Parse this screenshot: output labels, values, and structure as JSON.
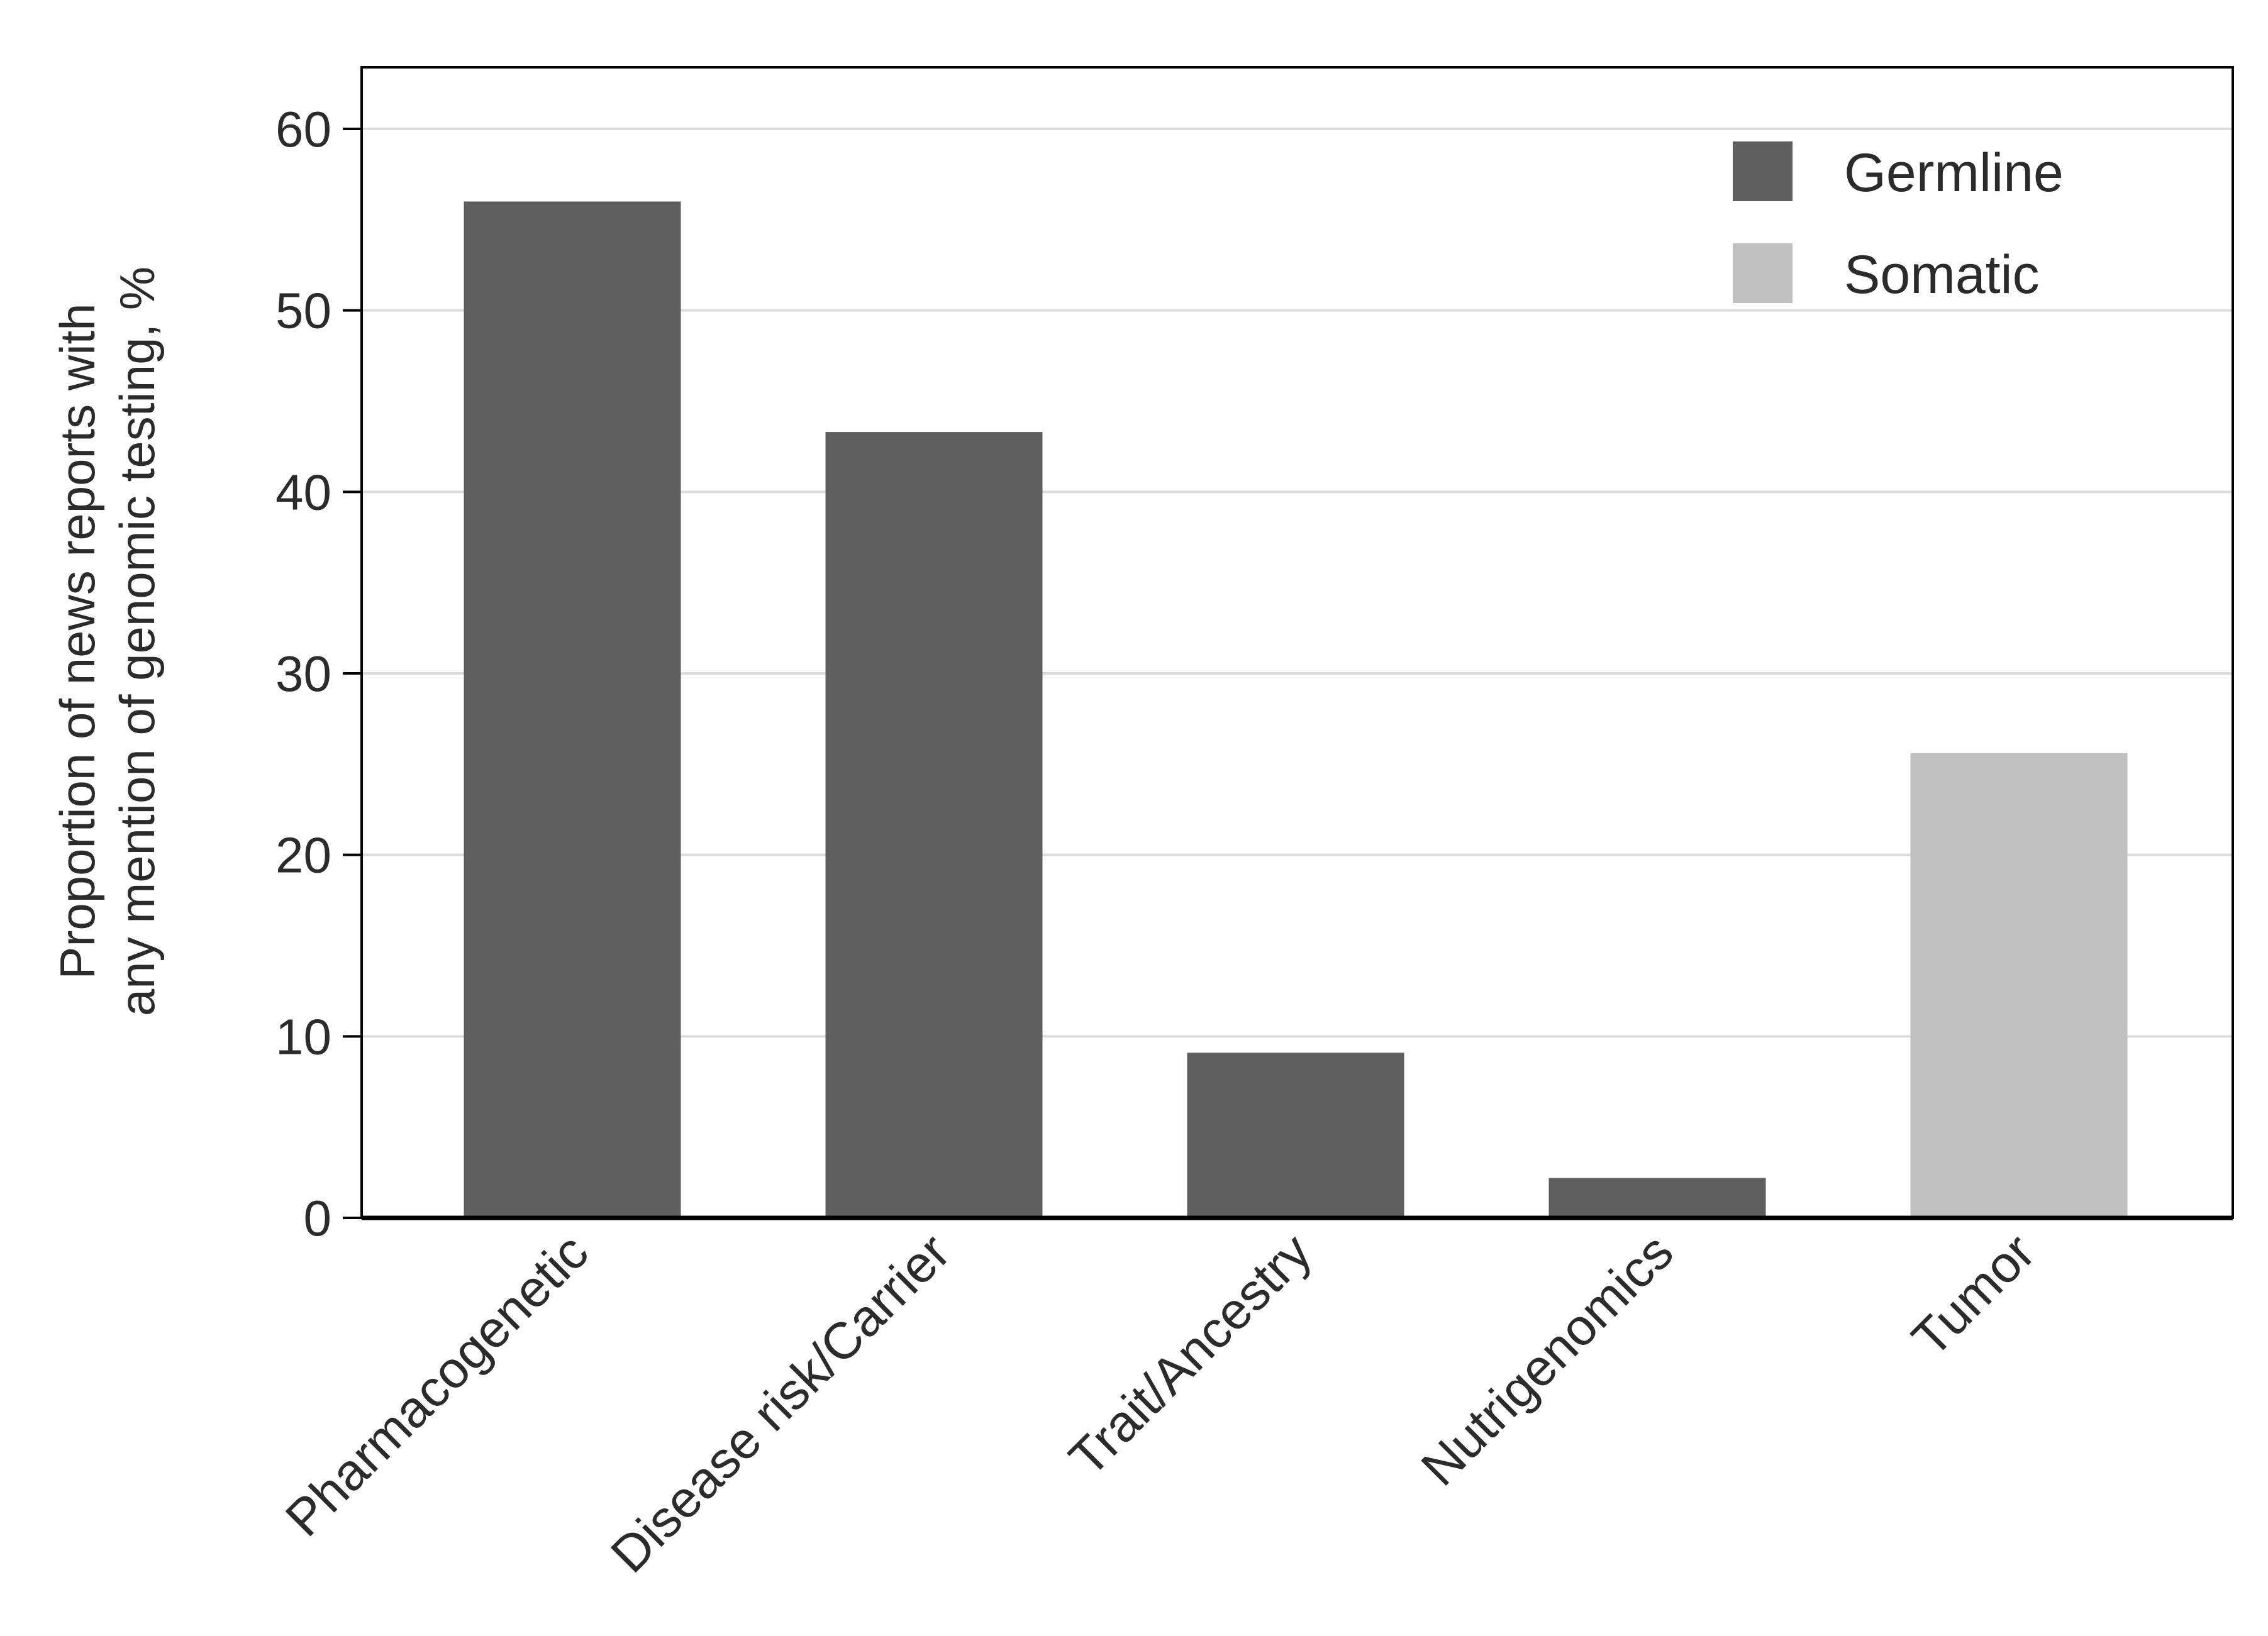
{
  "chart_data": {
    "type": "bar",
    "categories": [
      "Pharmacogenetic",
      "Disease risk/Carrier",
      "Trait/Ancestry",
      "Nutrigenomics",
      "Tumor"
    ],
    "values": [
      56,
      43.3,
      9.1,
      2.2,
      25.6
    ],
    "category_series": [
      "Germline",
      "Germline",
      "Germline",
      "Germline",
      "Somatic"
    ],
    "series": [
      {
        "name": "Germline",
        "color": "#5f5f5f"
      },
      {
        "name": "Somatic",
        "color": "#c0c0c0"
      }
    ],
    "ylabel_lines": [
      "Proportion of news reports with",
      "any mention of genomic testing, %"
    ],
    "ylim": [
      0,
      60
    ],
    "yticks": [
      0,
      10,
      20,
      30,
      40,
      50,
      60
    ],
    "grid": true,
    "legend_position": "top-right"
  }
}
